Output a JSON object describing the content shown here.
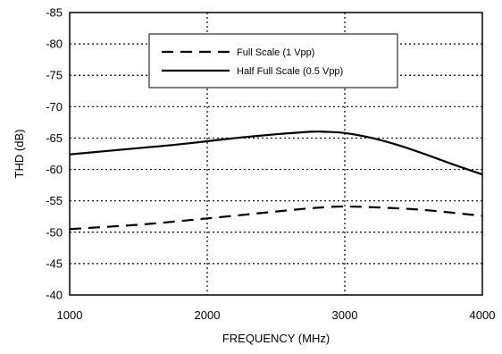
{
  "chart_data": {
    "type": "line",
    "title": "",
    "xlabel": "FREQUENCY (MHz)",
    "ylabel": "THD (dB)",
    "xlim": [
      1000,
      4000
    ],
    "ylim": [
      -40,
      -85
    ],
    "y_axis_inverted": true,
    "x_ticks": [
      1000,
      2000,
      3000,
      4000
    ],
    "y_ticks": [
      -40,
      -45,
      -50,
      -55,
      -60,
      -65,
      -70,
      -75,
      -80,
      -85
    ],
    "grid": true,
    "grid_style": "dotted",
    "legend_position": "top-center",
    "series": [
      {
        "name": "Full Scale (1 Vpp)",
        "line_style": "dashed",
        "color": "#000000",
        "x": [
          1000,
          1500,
          2000,
          2500,
          2800,
          3000,
          3300,
          3600,
          4000
        ],
        "y": [
          -50.5,
          -51.2,
          -52.2,
          -53.3,
          -53.9,
          -54.1,
          -53.9,
          -53.5,
          -52.6
        ]
      },
      {
        "name": "Half Full Scale (0.5 Vpp)",
        "line_style": "solid",
        "color": "#000000",
        "x": [
          1000,
          1250,
          1500,
          1750,
          2000,
          2250,
          2500,
          2750,
          2850,
          3000,
          3200,
          3400,
          3600,
          3800,
          4000
        ],
        "y": [
          -62.4,
          -62.9,
          -63.4,
          -63.9,
          -64.5,
          -65.1,
          -65.6,
          -66.0,
          -66.0,
          -65.8,
          -65.0,
          -63.8,
          -62.3,
          -60.7,
          -59.2
        ]
      }
    ]
  }
}
